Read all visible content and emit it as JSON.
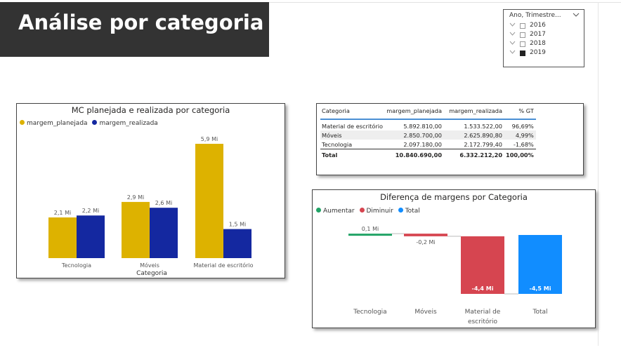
{
  "header": {
    "title": "Análise por categoria"
  },
  "slicer": {
    "title": "Ano, Trimestre...",
    "options": [
      {
        "label": "2016",
        "checked": false
      },
      {
        "label": "2017",
        "checked": false
      },
      {
        "label": "2018",
        "checked": false
      },
      {
        "label": "2019",
        "checked": true
      }
    ]
  },
  "colors": {
    "planejada": "#DDB200",
    "realizada": "#1428A0",
    "aumentar": "#21A366",
    "diminuir": "#D64550",
    "total": "#118DFF"
  },
  "table": {
    "headers": [
      "Categoria",
      "margem_planejada",
      "margem_realizada",
      "% GT"
    ],
    "rows": [
      [
        "Material de escritório",
        "5.892.810,00",
        "1.533.522,00",
        "96,69%"
      ],
      [
        "Móveis",
        "2.850.700,00",
        "2.625.890,80",
        "4,99%"
      ],
      [
        "Tecnologia",
        "2.097.180,00",
        "2.172.799,40",
        "-1,68%"
      ]
    ],
    "total": [
      "Total",
      "10.840.690,00",
      "6.332.212,20",
      "100,00%"
    ]
  },
  "chart_data": [
    {
      "type": "bar",
      "title": "MC planejada e realizada por categoria",
      "xlabel": "Categoria",
      "categories": [
        "Tecnologia",
        "Móveis",
        "Material de escritório"
      ],
      "series": [
        {
          "name": "margem_planejada",
          "values": [
            2.1,
            2.9,
            5.9
          ],
          "labels": [
            "2,1 Mi",
            "2,9 Mi",
            "5,9 Mi"
          ]
        },
        {
          "name": "margem_realizada",
          "values": [
            2.2,
            2.6,
            1.5
          ],
          "labels": [
            "2,2 Mi",
            "2,6 Mi",
            "1,5 Mi"
          ]
        }
      ],
      "unit": "Mi",
      "ylim": [
        0,
        6.3
      ]
    },
    {
      "type": "bar",
      "subtype": "waterfall",
      "title": "Diferença de margens por Categoria",
      "legend": [
        "Aumentar",
        "Diminuir",
        "Total"
      ],
      "categories": [
        "Tecnologia",
        "Móveis",
        "Material de escritório",
        "Total"
      ],
      "values": [
        0.1,
        -0.2,
        -4.4,
        -4.5
      ],
      "labels": [
        "0,1 Mi",
        "-0,2 Mi",
        "-4,4 Mi",
        "-4,5 Mi"
      ],
      "kinds": [
        "aumentar",
        "diminuir",
        "diminuir",
        "total"
      ],
      "unit": "Mi"
    }
  ]
}
